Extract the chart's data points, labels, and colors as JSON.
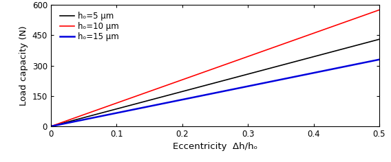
{
  "title": "",
  "xlabel": "Eccentricity  Δh/hₒ",
  "ylabel": "Load capacity (N)",
  "xlim": [
    0,
    0.5
  ],
  "ylim": [
    0,
    600
  ],
  "xticks": [
    0.0,
    0.1,
    0.2,
    0.3,
    0.4,
    0.5
  ],
  "yticks": [
    0,
    150,
    300,
    450,
    600
  ],
  "lines": [
    {
      "label": "hₒ=5 μm",
      "color": "#000000",
      "slope": 860,
      "linewidth": 1.2
    },
    {
      "label": "hₒ=10 μm",
      "color": "#ff0000",
      "slope": 1150,
      "linewidth": 1.2
    },
    {
      "label": "hₒ=15 μm",
      "color": "#0000dd",
      "slope": 660,
      "linewidth": 1.8
    }
  ],
  "legend_loc": "upper left",
  "legend_fontsize": 8.5,
  "tick_fontsize": 8.5,
  "label_fontsize": 9.5,
  "background_color": "#ffffff"
}
